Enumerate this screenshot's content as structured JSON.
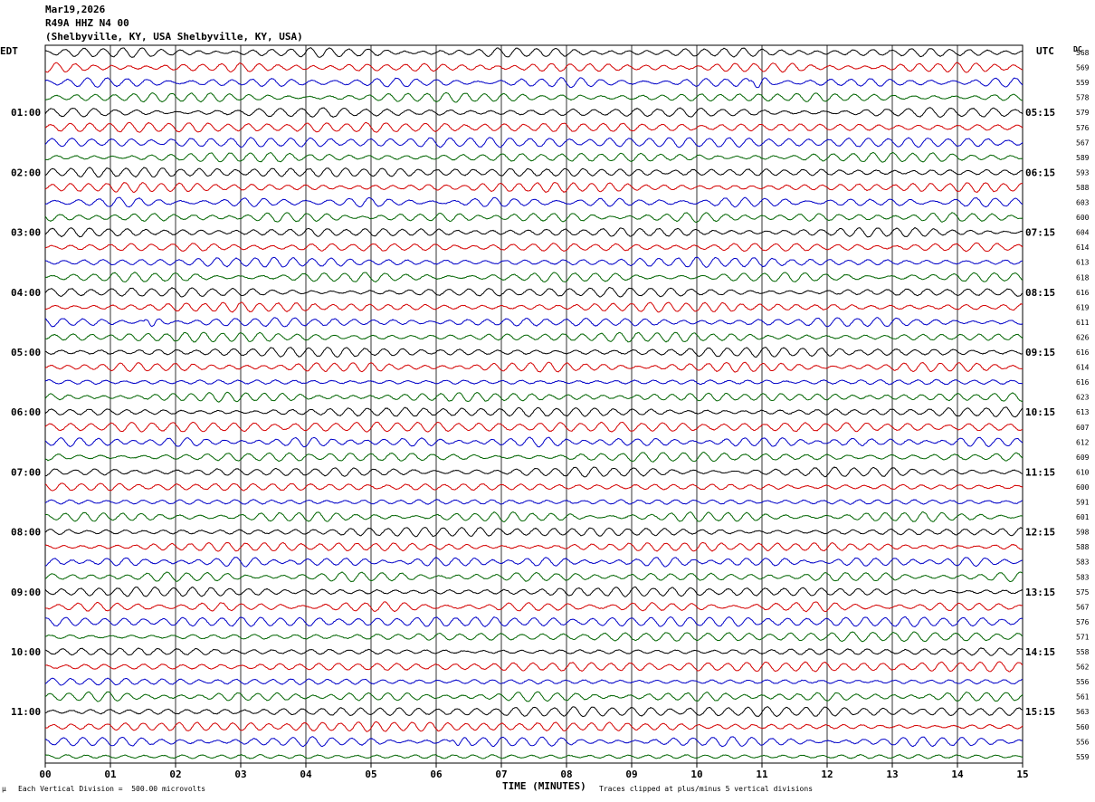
{
  "header": {
    "date": "Mar19,2026",
    "station": "R49A HHZ N4 00",
    "location": "(Shelbyville, KY, USA Shelbyville, KY, USA)"
  },
  "left_timezone": "EDT",
  "right_timezone": "UTC",
  "dc_label": "DC",
  "footer": {
    "scale_note": "Each Vertical Division =  500.00 microvolts",
    "clip_note": "Traces clipped at plus/minus 5 vertical divisions",
    "corner_mark": "µ"
  },
  "colors": {
    "trace_cycle": [
      "#000000",
      "#d40000",
      "#0000c8",
      "#006400"
    ],
    "grid": "#000000"
  },
  "chart_data": {
    "type": "line",
    "description_of_type": "helicorder",
    "xlabel": "TIME (MINUTES)",
    "xlim": [
      0,
      15
    ],
    "x_ticks": [
      "00",
      "01",
      "02",
      "03",
      "04",
      "05",
      "06",
      "07",
      "08",
      "09",
      "10",
      "11",
      "12",
      "13",
      "14",
      "15"
    ],
    "rows_per_hour": 4,
    "left_hour_labels": [
      "01:00",
      "02:00",
      "03:00",
      "04:00",
      "05:00",
      "06:00",
      "07:00",
      "08:00",
      "09:00",
      "10:00",
      "11:00"
    ],
    "right_hour_labels": [
      "05:15",
      "06:15",
      "07:15",
      "08:15",
      "09:15",
      "10:15",
      "11:15",
      "12:15",
      "13:15",
      "14:15",
      "15:15"
    ],
    "dc_offsets": [
      568,
      569,
      559,
      578,
      579,
      576,
      567,
      589,
      593,
      588,
      603,
      600,
      604,
      614,
      613,
      618,
      616,
      619,
      611,
      626,
      616,
      614,
      616,
      623,
      613,
      607,
      612,
      609,
      610,
      600,
      591,
      601,
      598,
      588,
      583,
      583,
      575,
      567,
      576,
      571,
      558,
      562,
      556,
      561,
      563,
      560,
      556,
      559
    ],
    "events": [
      {
        "row": 2,
        "minute": 10.9
      },
      {
        "row": 18,
        "minute": 1.6
      },
      {
        "row": 46,
        "minute": 6.3
      }
    ]
  }
}
